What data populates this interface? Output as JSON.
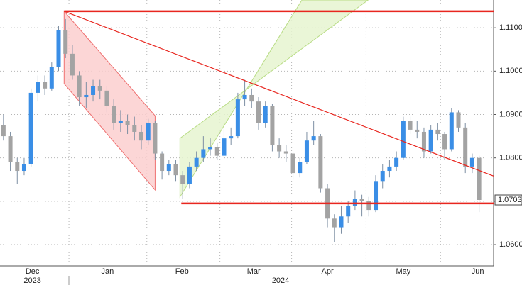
{
  "chart_data": {
    "type": "candlestick",
    "up_color": "#3a8ee6",
    "down_color": "#a3a3a3",
    "wick_color": "#7d8fa3",
    "xlim": [
      -0.5,
      71.1
    ],
    "ylim": [
      1.0551,
      1.1164
    ],
    "yticks": [
      {
        "value": 1.06,
        "label": "1.0600"
      },
      {
        "value": 1.07,
        "label": "1.0700"
      },
      {
        "value": 1.08,
        "label": "1.0800"
      },
      {
        "value": 1.09,
        "label": "1.0900"
      },
      {
        "value": 1.1,
        "label": "1.1000"
      },
      {
        "value": 1.11,
        "label": "1.1100"
      }
    ],
    "xgrid": [
      9.5,
      20.8,
      31.4,
      41.8,
      52.6,
      63.4
    ],
    "xticks": [
      {
        "value": 4.2,
        "label": "Dec"
      },
      {
        "value": 15.1,
        "label": "Jan"
      },
      {
        "value": 25.9,
        "label": "Feb"
      },
      {
        "value": 36.3,
        "label": "Mar"
      },
      {
        "value": 47.0,
        "label": "Apr"
      },
      {
        "value": 58.0,
        "label": "May"
      },
      {
        "value": 68.8,
        "label": "Jun"
      }
    ],
    "year_labels": [
      {
        "value": 4.2,
        "label": "2023"
      },
      {
        "value": 40.2,
        "label": "2024"
      }
    ],
    "grid": true,
    "last_price": {
      "value": 1.0703,
      "label": "1.0703"
    },
    "ohlc": [
      [
        1.0875,
        1.09,
        1.084,
        1.085
      ],
      [
        1.085,
        1.086,
        1.077,
        1.079
      ],
      [
        1.079,
        1.08,
        1.074,
        1.077
      ],
      [
        1.077,
        1.08,
        1.076,
        1.0785
      ],
      [
        1.0785,
        1.096,
        1.078,
        1.095
      ],
      [
        1.095,
        1.099,
        1.093,
        1.0975
      ],
      [
        1.0975,
        1.099,
        1.0945,
        1.096
      ],
      [
        1.096,
        1.102,
        1.0955,
        1.101
      ],
      [
        1.101,
        1.1105,
        1.1,
        1.1095
      ],
      [
        1.1095,
        1.112,
        1.103,
        1.104
      ],
      [
        1.104,
        1.106,
        1.098,
        1.099
      ],
      [
        1.099,
        1.1,
        1.092,
        1.094
      ],
      [
        1.094,
        1.0975,
        1.0915,
        1.0945
      ],
      [
        1.0945,
        1.098,
        1.093,
        1.0965
      ],
      [
        1.0965,
        1.098,
        1.0935,
        1.0955
      ],
      [
        1.0955,
        1.0965,
        1.0905,
        1.092
      ],
      [
        1.092,
        1.0935,
        1.0865,
        1.088
      ],
      [
        1.088,
        1.091,
        1.086,
        1.0885
      ],
      [
        1.0885,
        1.09,
        1.0855,
        1.0875
      ],
      [
        1.0875,
        1.0895,
        1.084,
        1.086
      ],
      [
        1.086,
        1.0875,
        1.082,
        1.084
      ],
      [
        1.084,
        1.089,
        1.083,
        1.088
      ],
      [
        1.088,
        1.0885,
        1.0795,
        1.081
      ],
      [
        1.081,
        1.0815,
        1.075,
        1.077
      ],
      [
        1.077,
        1.0795,
        1.076,
        1.0785
      ],
      [
        1.0785,
        1.0795,
        1.0745,
        1.076
      ],
      [
        1.076,
        1.077,
        1.0705,
        1.074
      ],
      [
        1.074,
        1.079,
        1.073,
        1.078
      ],
      [
        1.078,
        1.0815,
        1.077,
        1.08
      ],
      [
        1.08,
        1.085,
        1.079,
        1.082
      ],
      [
        1.082,
        1.0845,
        1.0805,
        1.0825
      ],
      [
        1.0825,
        1.0835,
        1.0795,
        1.0805
      ],
      [
        1.0805,
        1.087,
        1.08,
        1.0845
      ],
      [
        1.0845,
        1.087,
        1.083,
        1.085
      ],
      [
        1.085,
        1.095,
        1.0845,
        1.0935
      ],
      [
        1.0935,
        1.098,
        1.092,
        1.0945
      ],
      [
        1.0945,
        1.096,
        1.0915,
        1.093
      ],
      [
        1.093,
        1.094,
        1.0865,
        1.088
      ],
      [
        1.088,
        1.093,
        1.087,
        1.092
      ],
      [
        1.092,
        1.0925,
        1.0815,
        1.083
      ],
      [
        1.083,
        1.0845,
        1.08,
        1.0815
      ],
      [
        1.0815,
        1.083,
        1.079,
        1.081
      ],
      [
        1.081,
        1.0815,
        1.075,
        1.0765
      ],
      [
        1.0765,
        1.08,
        1.0755,
        1.079
      ],
      [
        1.079,
        1.086,
        1.0785,
        1.084
      ],
      [
        1.084,
        1.0885,
        1.083,
        1.085
      ],
      [
        1.085,
        1.0855,
        1.072,
        1.073
      ],
      [
        1.073,
        1.074,
        1.064,
        1.066
      ],
      [
        1.066,
        1.067,
        1.0605,
        1.064
      ],
      [
        1.064,
        1.069,
        1.0625,
        1.0665
      ],
      [
        1.0665,
        1.07,
        1.065,
        1.069
      ],
      [
        1.069,
        1.0725,
        1.068,
        1.0705
      ],
      [
        1.0705,
        1.0715,
        1.0665,
        1.07
      ],
      [
        1.07,
        1.071,
        1.0665,
        1.068
      ],
      [
        1.068,
        1.076,
        1.0675,
        1.0745
      ],
      [
        1.0745,
        1.0785,
        1.073,
        1.077
      ],
      [
        1.077,
        1.0795,
        1.0755,
        1.078
      ],
      [
        1.078,
        1.0815,
        1.077,
        1.08
      ],
      [
        1.08,
        1.0895,
        1.0795,
        1.0885
      ],
      [
        1.0885,
        1.0895,
        1.0855,
        1.0865
      ],
      [
        1.0865,
        1.0885,
        1.0845,
        1.086
      ],
      [
        1.086,
        1.087,
        1.08,
        1.0815
      ],
      [
        1.0815,
        1.0875,
        1.081,
        1.0865
      ],
      [
        1.0865,
        1.088,
        1.084,
        1.0855
      ],
      [
        1.0855,
        1.086,
        1.0795,
        1.082
      ],
      [
        1.082,
        1.0915,
        1.0815,
        1.0905
      ],
      [
        1.0905,
        1.091,
        1.086,
        1.087
      ],
      [
        1.087,
        1.088,
        1.0765,
        1.078
      ],
      [
        1.078,
        1.081,
        1.0765,
        1.08
      ],
      [
        1.08,
        1.0805,
        1.0675,
        1.0703
      ]
    ],
    "annotations": [
      {
        "type": "polygon",
        "fill": "#fbcfcf",
        "stroke": "#ef6f6f",
        "points": [
          [
            8.8,
            1.1138
          ],
          [
            22.0,
            1.0897
          ],
          [
            22.0,
            1.0726
          ],
          [
            8.8,
            1.0971
          ]
        ]
      },
      {
        "type": "polygon",
        "fill": "#e6f4d0",
        "stroke": "#b9dc86",
        "points": [
          [
            25.6,
            1.071
          ],
          [
            43.3,
            1.1164
          ],
          [
            52.9,
            1.1164
          ],
          [
            25.6,
            1.0845
          ]
        ]
      },
      {
        "type": "line",
        "stroke": "#e8261f",
        "width": 2.5,
        "points": [
          [
            8.8,
            1.1138
          ],
          [
            71.1,
            1.1138
          ]
        ]
      },
      {
        "type": "line",
        "stroke": "#e8261f",
        "width": 2.5,
        "points": [
          [
            25.8,
            1.0695
          ],
          [
            71.1,
            1.0695
          ]
        ]
      },
      {
        "type": "line",
        "stroke": "#e8261f",
        "width": 1.2,
        "points": [
          [
            8.8,
            1.1138
          ],
          [
            71.1,
            1.0758
          ]
        ]
      }
    ]
  }
}
